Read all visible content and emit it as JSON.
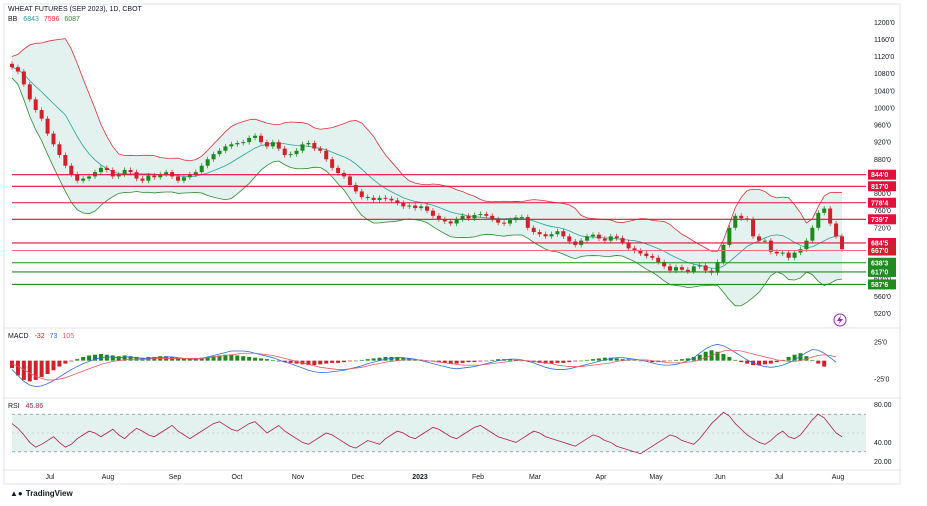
{
  "header": {
    "title": "WHEAT FUTURES (SEP 2023), 1D, CBOT",
    "bb_label": "BB",
    "bb_values": [
      "6843",
      "7596",
      "6087"
    ]
  },
  "macd_header": {
    "label": "MACD",
    "values": [
      "-32",
      "73",
      "105"
    ]
  },
  "rsi_header": {
    "label": "RSI",
    "value": "45.86"
  },
  "footer": {
    "logo_text": "TradingView"
  },
  "colors": {
    "candle_up": "#1b8a1b",
    "candle_down": "#d0202a",
    "bb_upper": "#e0303a",
    "bb_basis": "#2aa198",
    "bb_lower": "#2e8b2e",
    "bb_fill": "#e4f2ef",
    "resistance": "#e0123a",
    "support": "#1e8c1e",
    "rsi_line": "#b01e4b",
    "rsi_band": "#e4f2ef",
    "macd_line": "#2f6fd6",
    "signal_line": "#e35d6a"
  },
  "chart_data": [
    {
      "type": "candlestick",
      "title": "WHEAT FUTURES (SEP 2023), 1D, CBOT",
      "x_ticks": [
        "Jul",
        "Aug",
        "Sep",
        "Oct",
        "Nov",
        "Dec",
        "2023",
        "Feb",
        "Mar",
        "Apr",
        "May",
        "Jun",
        "Jul",
        "Aug"
      ],
      "y_ticks": [
        "1200'0",
        "1160'0",
        "1120'0",
        "1080'0",
        "1040'0",
        "1000'0",
        "960'0",
        "920'0",
        "880'0",
        "840'0",
        "800'0",
        "760'0",
        "720'0",
        "680'0",
        "640'0",
        "600'0",
        "560'0",
        "520'0"
      ],
      "ylim": [
        500,
        1210
      ],
      "close_series": [
        1095,
        1085,
        1055,
        1020,
        995,
        975,
        940,
        915,
        890,
        865,
        845,
        830,
        835,
        840,
        850,
        860,
        855,
        840,
        845,
        855,
        850,
        835,
        830,
        842,
        838,
        845,
        850,
        840,
        830,
        838,
        845,
        850,
        865,
        880,
        892,
        900,
        910,
        915,
        918,
        920,
        930,
        935,
        920,
        910,
        920,
        905,
        890,
        892,
        900,
        915,
        918,
        905,
        900,
        880,
        860,
        848,
        840,
        820,
        805,
        792,
        790,
        785,
        790,
        788,
        784,
        778,
        770,
        772,
        766,
        770,
        760,
        748,
        740,
        735,
        730,
        740,
        748,
        742,
        750,
        752,
        748,
        740,
        732,
        730,
        738,
        744,
        745,
        720,
        710,
        705,
        700,
        705,
        712,
        700,
        688,
        680,
        690,
        700,
        704,
        695,
        690,
        700,
        696,
        686,
        672,
        666,
        660,
        654,
        650,
        640,
        630,
        620,
        628,
        622,
        618,
        630,
        632,
        620,
        615,
        640,
        680,
        720,
        748,
        742,
        740,
        700,
        690,
        690,
        664,
        660,
        662,
        650,
        662,
        670,
        690,
        720,
        755,
        765,
        730,
        700,
        670
      ],
      "resistance_levels": [
        "844'0",
        "817'0",
        "778'4",
        "739'7",
        "684'5"
      ],
      "current_price": "667'0",
      "support_levels": [
        "638'3",
        "617'0",
        "587'6"
      ],
      "bb_legend": {
        "basis": "6843",
        "upper": "7596",
        "lower": "6087"
      }
    },
    {
      "type": "bar",
      "title": "MACD",
      "legend_values": [
        "-32",
        "73",
        "105"
      ],
      "y_ticks": [
        "25'0",
        "-25'0"
      ],
      "ylim": [
        -45,
        40
      ],
      "histogram": [
        -10,
        -20,
        -26,
        -28,
        -26,
        -22,
        -18,
        -13,
        -8,
        -4,
        -1,
        2,
        5,
        7,
        8,
        9,
        8,
        7,
        6,
        7,
        6,
        5,
        4,
        5,
        5,
        6,
        6,
        5,
        4,
        3,
        2,
        3,
        4,
        5,
        6,
        7,
        8,
        8,
        7,
        6,
        5,
        4,
        3,
        2,
        1,
        -1,
        -2,
        -3,
        -4,
        -5,
        -6,
        -6,
        -5,
        -4,
        -3,
        -3,
        -2,
        -1,
        0,
        1,
        2,
        3,
        4,
        5,
        5,
        5,
        4,
        3,
        2,
        1,
        0,
        -1,
        -2,
        -3,
        -4,
        -4,
        -3,
        -2,
        -2,
        -1,
        0,
        1,
        2,
        2,
        2,
        1,
        0,
        -1,
        -2,
        -3,
        -4,
        -4,
        -3,
        -3,
        -2,
        -1,
        0,
        1,
        2,
        3,
        4,
        4,
        3,
        2,
        2,
        1,
        0,
        -1,
        -2,
        -2,
        -1,
        0,
        1,
        2,
        3,
        5,
        8,
        12,
        14,
        12,
        9,
        5,
        1,
        -2,
        -4,
        -6,
        -6,
        -5,
        -4,
        -2,
        1,
        5,
        8,
        10,
        6,
        1,
        -4,
        -8
      ],
      "macd_line": [
        -12,
        -20,
        -28,
        -33,
        -35,
        -34,
        -31,
        -27,
        -22,
        -17,
        -12,
        -8,
        -4,
        -1,
        2,
        4,
        5,
        5,
        4,
        5,
        5,
        4,
        3,
        3,
        4,
        4,
        5,
        5,
        4,
        3,
        2,
        2,
        3,
        5,
        7,
        9,
        11,
        13,
        13,
        13,
        12,
        10,
        8,
        6,
        4,
        1,
        -2,
        -4,
        -7,
        -10,
        -13,
        -15,
        -16,
        -16,
        -15,
        -14,
        -13,
        -11,
        -9,
        -7,
        -4,
        -2,
        0,
        2,
        3,
        4,
        4,
        3,
        2,
        0,
        -2,
        -4,
        -6,
        -8,
        -10,
        -11,
        -10,
        -9,
        -8,
        -6,
        -4,
        -2,
        0,
        1,
        2,
        2,
        1,
        -1,
        -3,
        -6,
        -9,
        -11,
        -12,
        -12,
        -11,
        -9,
        -7,
        -5,
        -3,
        -1,
        1,
        3,
        4,
        4,
        3,
        2,
        1,
        -1,
        -3,
        -5,
        -6,
        -6,
        -5,
        -3,
        0,
        4,
        10,
        16,
        20,
        22,
        20,
        16,
        11,
        6,
        1,
        -3,
        -6,
        -8,
        -9,
        -8,
        -6,
        -3,
        1,
        6,
        11,
        15,
        14,
        10,
        4,
        -2
      ],
      "signal_line": [
        -4,
        -8,
        -12,
        -17,
        -21,
        -24,
        -26,
        -26,
        -25,
        -23,
        -20,
        -17,
        -14,
        -11,
        -8,
        -5,
        -3,
        -1,
        0,
        1,
        2,
        2,
        2,
        2,
        3,
        3,
        3,
        3,
        3,
        3,
        3,
        3,
        3,
        4,
        5,
        6,
        7,
        8,
        9,
        10,
        10,
        10,
        9,
        8,
        7,
        5,
        3,
        1,
        -1,
        -3,
        -5,
        -7,
        -9,
        -10,
        -11,
        -12,
        -12,
        -11,
        -10,
        -9,
        -7,
        -5,
        -4,
        -2,
        -1,
        0,
        1,
        1,
        1,
        1,
        0,
        -1,
        -2,
        -3,
        -4,
        -5,
        -6,
        -6,
        -6,
        -6,
        -5,
        -4,
        -3,
        -2,
        -1,
        0,
        0,
        0,
        -1,
        -2,
        -3,
        -4,
        -6,
        -7,
        -8,
        -8,
        -8,
        -7,
        -6,
        -5,
        -4,
        -3,
        -1,
        0,
        1,
        1,
        1,
        1,
        0,
        -1,
        -2,
        -3,
        -3,
        -3,
        -2,
        -1,
        1,
        4,
        7,
        10,
        13,
        14,
        14,
        13,
        11,
        9,
        7,
        5,
        3,
        1,
        0,
        -1,
        -1,
        0,
        2,
        5,
        7,
        8,
        7,
        5
      ]
    },
    {
      "type": "line",
      "title": "RSI",
      "legend_value": "45.86",
      "y_ticks": [
        "80.00",
        "40.00",
        "20.00"
      ],
      "ylim": [
        15,
        85
      ],
      "band": [
        30,
        70
      ],
      "values": [
        60,
        55,
        48,
        40,
        35,
        38,
        42,
        46,
        40,
        35,
        38,
        44,
        48,
        52,
        50,
        46,
        50,
        54,
        48,
        44,
        50,
        55,
        52,
        48,
        46,
        50,
        54,
        58,
        52,
        48,
        44,
        48,
        52,
        56,
        60,
        62,
        58,
        54,
        52,
        56,
        60,
        62,
        56,
        50,
        54,
        58,
        52,
        48,
        44,
        40,
        38,
        42,
        46,
        50,
        48,
        44,
        40,
        36,
        34,
        38,
        42,
        40,
        38,
        44,
        48,
        52,
        50,
        46,
        44,
        48,
        52,
        56,
        54,
        50,
        46,
        44,
        48,
        52,
        56,
        58,
        54,
        50,
        46,
        44,
        42,
        40,
        44,
        48,
        52,
        50,
        46,
        44,
        42,
        40,
        38,
        36,
        40,
        44,
        48,
        46,
        42,
        40,
        36,
        34,
        32,
        30,
        28,
        32,
        36,
        40,
        44,
        48,
        46,
        42,
        40,
        38,
        44,
        52,
        60,
        66,
        72,
        68,
        60,
        54,
        48,
        44,
        40,
        38,
        42,
        48,
        52,
        46,
        44,
        48,
        56,
        64,
        70,
        66,
        58,
        50,
        46
      ],
      "current_value": "45.86"
    }
  ]
}
